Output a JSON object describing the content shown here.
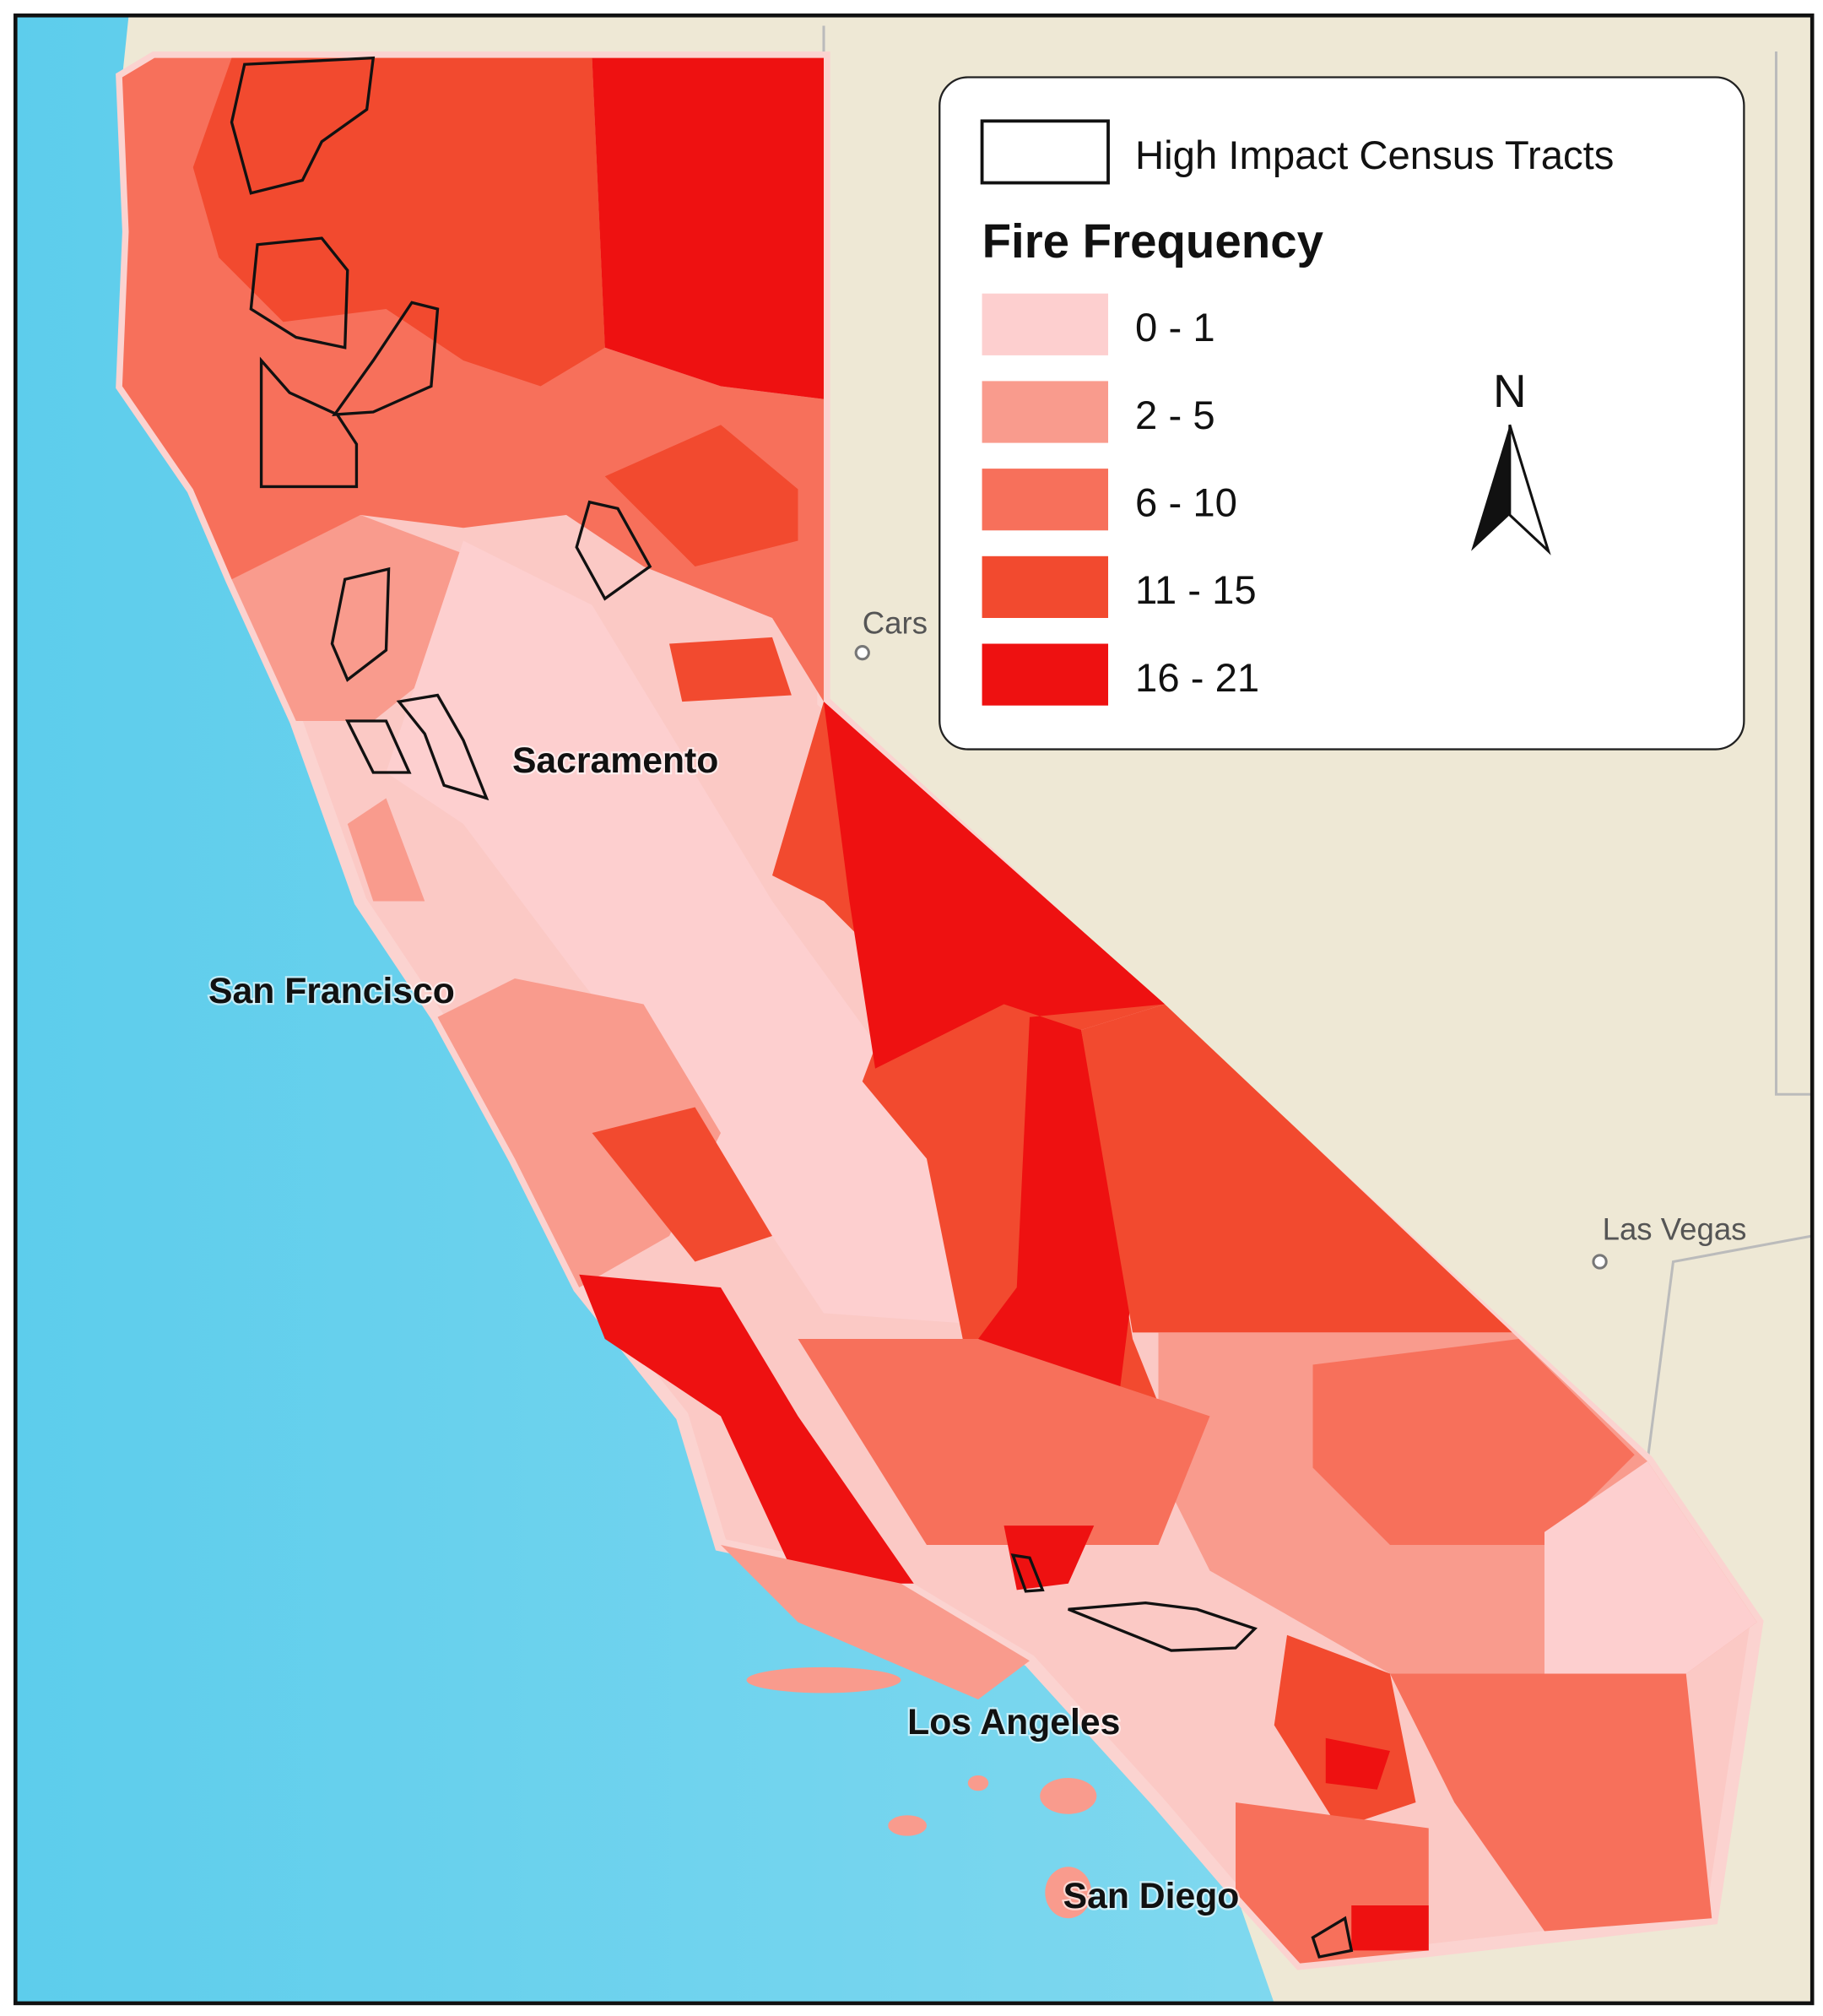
{
  "legend": {
    "outline_label": "High Impact Census Tracts",
    "title": "Fire Frequency",
    "classes": [
      {
        "label": "0 - 1",
        "color": "#fdcfcf"
      },
      {
        "label": "2 - 5",
        "color": "#f99b8d"
      },
      {
        "label": "6 - 10",
        "color": "#f7705b"
      },
      {
        "label": "11 - 15",
        "color": "#f24a2f"
      },
      {
        "label": "16 - 21",
        "color": "#ee1111"
      }
    ]
  },
  "north_arrow": "N",
  "cities": [
    "Sacramento",
    "San Francisco",
    "Los Angeles",
    "San Diego"
  ],
  "basemap_labels": [
    "Cars",
    "Las Vegas"
  ]
}
